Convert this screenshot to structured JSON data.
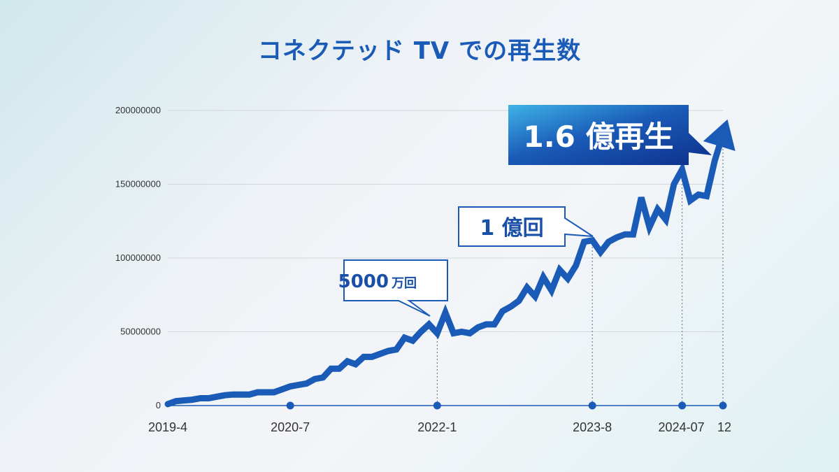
{
  "chart_data": {
    "type": "line",
    "title": "コネクテッド TV での再生数",
    "xlabel": "",
    "ylabel": "",
    "ylim": [
      0,
      200000000
    ],
    "y_ticks": [
      0,
      50000000,
      100000000,
      150000000,
      200000000
    ],
    "y_tick_labels": [
      "0",
      "50000000",
      "100000000",
      "150000000",
      "200000000"
    ],
    "x_ticks": [
      {
        "label": "2019-4",
        "x": "2019-04"
      },
      {
        "label": "2020-7",
        "x": "2020-07"
      },
      {
        "label": "2022-1",
        "x": "2022-01"
      },
      {
        "label": "2023-8",
        "x": "2023-08"
      },
      {
        "label": "2024-07",
        "x": "2024-07"
      },
      {
        "label": "12",
        "x": "2024-12"
      }
    ],
    "grid": true,
    "color": "#1a5bb8",
    "series": [
      {
        "x": [
          "2019-04",
          "2019-05",
          "2019-06",
          "2019-07",
          "2019-08",
          "2019-09",
          "2019-10",
          "2019-11",
          "2019-12",
          "2020-01",
          "2020-02",
          "2020-03",
          "2020-04",
          "2020-05",
          "2020-06",
          "2020-07",
          "2020-08",
          "2020-09",
          "2020-10",
          "2020-11",
          "2020-12",
          "2021-01",
          "2021-02",
          "2021-03",
          "2021-04",
          "2021-05",
          "2021-06",
          "2021-07",
          "2021-08",
          "2021-09",
          "2021-10",
          "2021-11",
          "2021-12",
          "2022-01",
          "2022-02",
          "2022-03",
          "2022-04",
          "2022-05",
          "2022-06",
          "2022-07",
          "2022-08",
          "2022-09",
          "2022-10",
          "2022-11",
          "2022-12",
          "2023-01",
          "2023-02",
          "2023-03",
          "2023-04",
          "2023-05",
          "2023-06",
          "2023-07",
          "2023-08",
          "2023-09",
          "2023-10",
          "2023-11",
          "2023-12",
          "2024-01",
          "2024-02",
          "2024-03",
          "2024-04",
          "2024-05",
          "2024-06",
          "2024-07",
          "2024-08",
          "2024-09",
          "2024-10",
          "2024-11",
          "2024-12"
        ],
        "values": [
          1000000,
          3000000,
          3500000,
          4000000,
          5000000,
          5000000,
          6000000,
          7000000,
          7500000,
          7500000,
          7500000,
          9000000,
          9000000,
          9000000,
          11000000,
          13000000,
          14000000,
          15000000,
          18000000,
          19000000,
          25000000,
          25000000,
          30000000,
          28000000,
          33000000,
          33000000,
          35000000,
          37000000,
          38000000,
          46000000,
          44000000,
          50000000,
          55000000,
          49000000,
          63000000,
          49000000,
          50000000,
          49000000,
          53000000,
          55000000,
          55000000,
          64000000,
          67000000,
          71000000,
          80000000,
          74000000,
          87000000,
          78000000,
          92000000,
          86000000,
          95000000,
          111000000,
          112000000,
          104000000,
          111000000,
          114000000,
          116000000,
          116000000,
          141000000,
          121000000,
          133000000,
          126000000,
          150000000,
          160000000,
          139000000,
          143000000,
          142000000,
          166000000,
          184000000
        ]
      }
    ],
    "annotations": [
      {
        "text": "5000",
        "small": "万回",
        "x": "2022-01"
      },
      {
        "text": "1 億回",
        "x": "2023-08"
      },
      {
        "text": "1.6 億再生",
        "x": "2024-12"
      }
    ]
  }
}
